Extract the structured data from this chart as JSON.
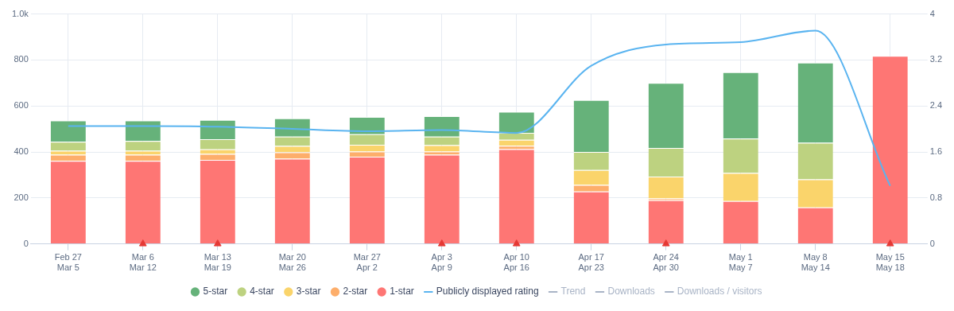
{
  "chart_data": {
    "type": "bar",
    "stacked": true,
    "categories": [
      "Feb 27\nMar 5",
      "Mar 6\nMar 12",
      "Mar 13\nMar 19",
      "Mar 20\nMar 26",
      "Mar 27\nApr 2",
      "Apr 3\nApr 9",
      "Apr 10\nApr 16",
      "Apr 17\nApr 23",
      "Apr 24\nApr 30",
      "May 1\nMay 7",
      "May 8\nMay 14",
      "May 15\nMay 18"
    ],
    "series": [
      {
        "name": "1-star",
        "color": "#fe7674",
        "values": [
          361,
          361,
          365,
          371,
          379,
          388,
          412,
          228,
          190,
          186,
          159,
          818
        ]
      },
      {
        "name": "2-star",
        "color": "#fdae6b",
        "values": [
          27,
          27,
          26,
          27,
          23,
          14,
          15,
          28,
          8,
          null,
          null,
          0
        ]
      },
      {
        "name": "3-star",
        "color": "#fad46b",
        "values": [
          17,
          17,
          20,
          28,
          29,
          27,
          26,
          65,
          95,
          122,
          122,
          0
        ]
      },
      {
        "name": "4-star",
        "color": "#bdd280",
        "values": [
          39,
          43,
          44,
          41,
          46,
          38,
          30,
          79,
          124,
          150,
          159,
          0
        ]
      },
      {
        "name": "5-star",
        "color": "#66b27a",
        "values": [
          93,
          89,
          84,
          79,
          75,
          89,
          92,
          226,
          283,
          289,
          348,
          0
        ]
      },
      {
        "name": "Publicly displayed rating",
        "type": "line",
        "axis": "y2",
        "color": "#5ab4f0",
        "marker": "none",
        "values": [
          2.05,
          2.05,
          2.04,
          2.0,
          1.96,
          1.98,
          1.93,
          3.1,
          3.47,
          3.51,
          3.71,
          1.01
        ]
      },
      {
        "name": "Trend",
        "type": "line",
        "color": "#a9b4c6",
        "values": [
          null,
          null,
          null,
          null,
          null,
          null,
          null,
          null,
          null,
          null,
          null,
          null
        ]
      },
      {
        "name": "Downloads",
        "type": "line",
        "color": "#a9b4c6",
        "values": [
          null,
          null,
          null,
          null,
          null,
          null,
          null,
          null,
          null,
          null,
          null,
          null
        ]
      },
      {
        "name": "Downloads / visitors",
        "type": "line",
        "color": "#a9b4c6",
        "values": [
          null,
          null,
          null,
          null,
          null,
          null,
          null,
          null,
          null,
          null,
          null,
          null
        ]
      },
      {
        "type": "scatter",
        "color": "#e53935",
        "marker": "triangle",
        "values": [
          null,
          0,
          0,
          null,
          null,
          0,
          0,
          null,
          0,
          null,
          null,
          0
        ]
      }
    ],
    "ylim": [
      0,
      1000
    ],
    "yticks": [
      0,
      200,
      400,
      600,
      800,
      {
        "value": 1000,
        "label": "1.0k"
      }
    ],
    "y2lim": [
      0,
      4
    ],
    "y2ticks": [
      0,
      0.8,
      1.6,
      2.4,
      3.2,
      4
    ],
    "grid": true,
    "legend": "bottom"
  }
}
